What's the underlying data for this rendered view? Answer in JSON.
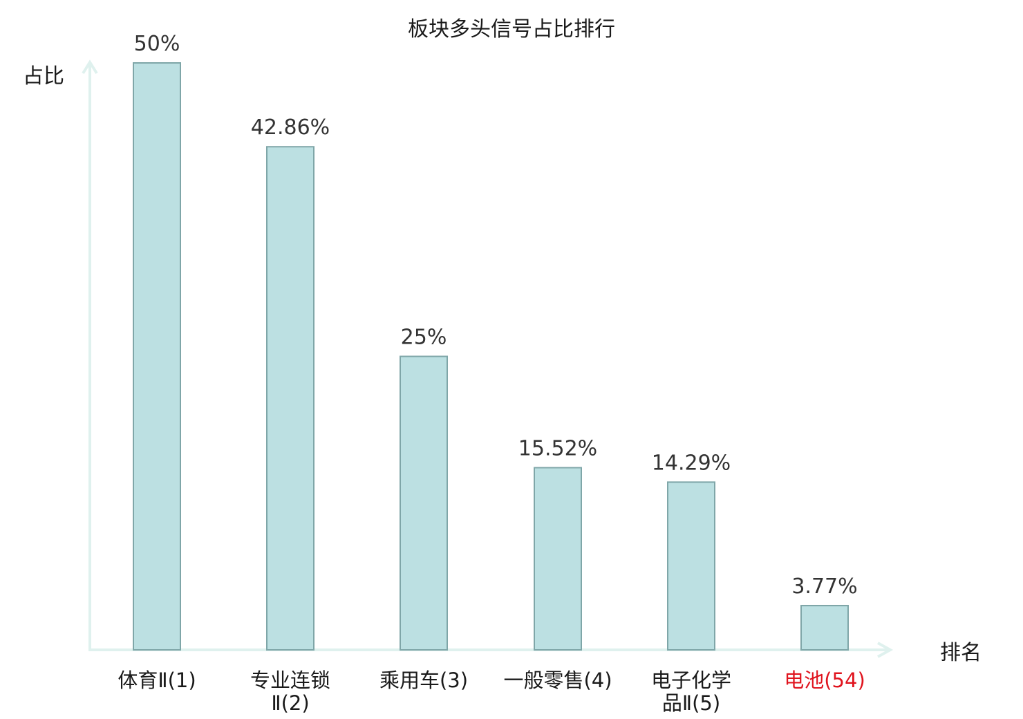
{
  "chart_data": {
    "type": "bar",
    "title": "板块多头信号占比排行",
    "ylabel": "占比",
    "xlabel": "排名",
    "ylim": [
      0,
      50
    ],
    "grid": false,
    "categories": [
      {
        "lines": [
          "体育Ⅱ(1)"
        ],
        "highlight": false
      },
      {
        "lines": [
          "专业连锁",
          "Ⅱ(2)"
        ],
        "highlight": false
      },
      {
        "lines": [
          "乘用车(3)"
        ],
        "highlight": false
      },
      {
        "lines": [
          "一般零售(4)"
        ],
        "highlight": false
      },
      {
        "lines": [
          "电子化学",
          "品Ⅱ(5)"
        ],
        "highlight": false
      },
      {
        "lines": [
          "电池(54)"
        ],
        "highlight": true
      }
    ],
    "values": [
      50,
      42.86,
      25,
      15.52,
      14.29,
      3.77
    ],
    "value_labels": [
      "50%",
      "42.86%",
      "25%",
      "15.52%",
      "14.29%",
      "3.77%"
    ],
    "colors": {
      "bar_fill": "#bce0e2",
      "bar_stroke": "#7fa6a8",
      "axis": "#dff1ee",
      "highlight_text": "#e0141e"
    }
  }
}
